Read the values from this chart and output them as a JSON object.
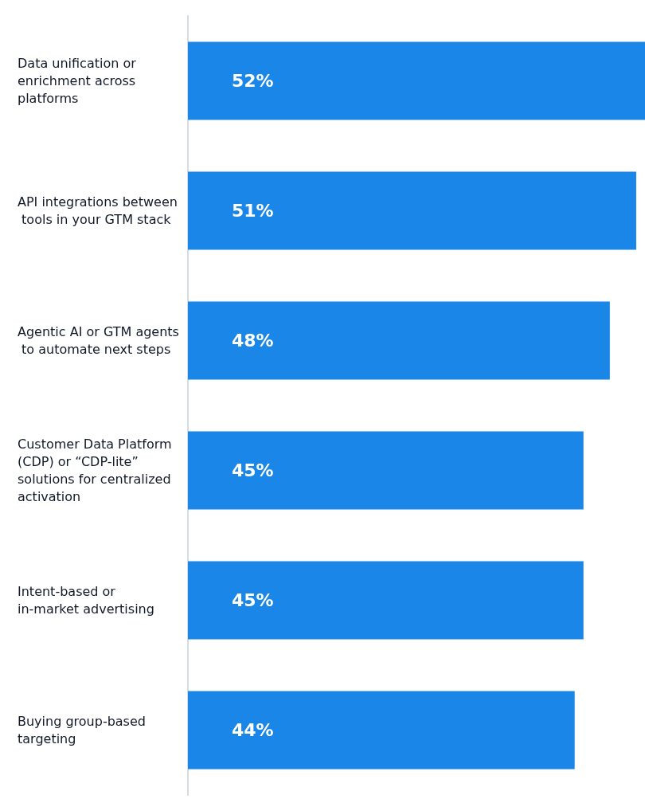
{
  "chart_data": {
    "type": "bar",
    "orientation": "horizontal",
    "categories": [
      "Data unification or enrichment across platforms",
      "API integrations between tools in your GTM stack",
      "Agentic AI or GTM agents to automate next steps",
      "Customer Data Platform (CDP) or “CDP-lite” solutions for centralized activation",
      "Intent-based or in-market advertising",
      "Buying group-based targeting"
    ],
    "values": [
      52,
      51,
      48,
      45,
      45,
      44
    ],
    "value_labels": [
      "52%",
      "51%",
      "48%",
      "45%",
      "45%",
      "44%"
    ],
    "color": "#1a86e8",
    "xlim": [
      0,
      52
    ]
  }
}
